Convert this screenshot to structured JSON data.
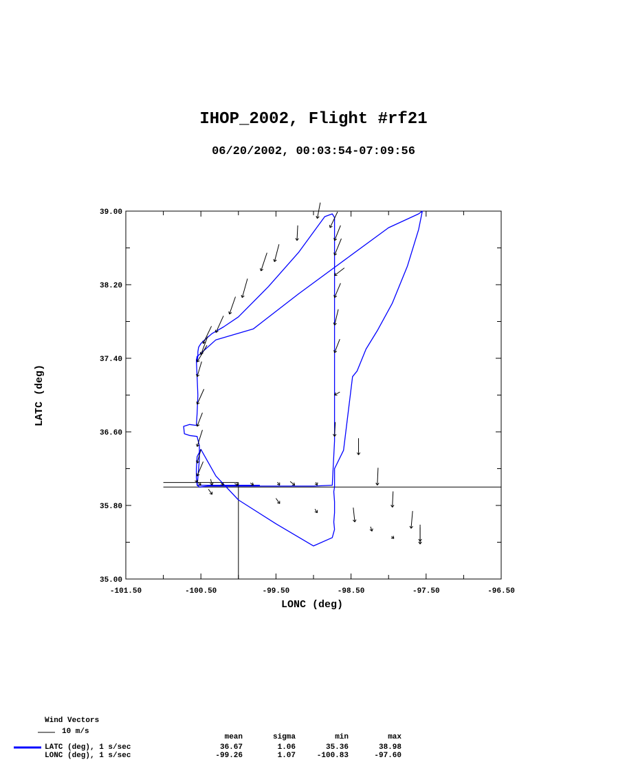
{
  "page": {
    "title": "IHOP_2002, Flight #rf21",
    "subtitle": "06/20/2002, 00:03:54-07:09:56"
  },
  "chart_data": {
    "type": "line",
    "xlabel": "LONC (deg)",
    "ylabel": "LATC (deg)",
    "xlim": [
      -101.5,
      -96.5
    ],
    "ylim": [
      35.0,
      39.0
    ],
    "x_ticks": [
      "-101.50",
      "-100.50",
      "-99.50",
      "-98.50",
      "-97.50",
      "-96.50"
    ],
    "y_ticks": [
      "35.00",
      "35.80",
      "36.60",
      "37.40",
      "38.20",
      "39.00"
    ],
    "grid": false,
    "track_color": "#0000ff",
    "vector_color": "#000000",
    "reference_lines": [
      {
        "x": [
          -101.0,
          -96.5
        ],
        "y": [
          36.0,
          36.0
        ]
      },
      {
        "x": [
          -101.0,
          -100.0
        ],
        "y": [
          36.05,
          36.05
        ]
      },
      {
        "x": [
          -100.0,
          -100.0
        ],
        "y": [
          36.05,
          35.0
        ]
      }
    ],
    "series": [
      {
        "x": [
          -100.55,
          -100.54,
          -100.54,
          -100.53,
          -100.5,
          -100.45,
          -100.35,
          -100.2,
          -100.0,
          -99.6,
          -99.2,
          -98.85,
          -98.75,
          -98.72,
          -98.72,
          -98.72,
          -98.72,
          -98.72,
          -98.72,
          -98.72,
          -98.75,
          -99.0,
          -99.5,
          -100.0,
          -100.4,
          -100.52,
          -100.55,
          -100.54,
          -100.53,
          -100.52,
          -100.52,
          -100.55,
          -100.65,
          -100.72,
          -100.73,
          -100.65,
          -100.56,
          -100.55,
          -100.54,
          -100.55,
          -100.56,
          -100.55,
          -100.52,
          -100.3,
          -99.8,
          -99.2,
          -98.6,
          -98.0,
          -97.6,
          -97.55,
          -97.6,
          -97.75,
          -97.95,
          -98.15,
          -98.3,
          -98.38,
          -98.42,
          -98.48,
          -98.6,
          -98.72,
          -98.72,
          -98.73,
          -98.72,
          -98.72,
          -98.73,
          -98.72,
          -98.75,
          -99.0,
          -99.5,
          -100.0,
          -100.3,
          -100.5,
          -100.55,
          -100.56,
          -100.56,
          -100.55,
          -100.54,
          -100.55,
          -100.55,
          -100.2,
          -100.0,
          -99.75,
          -99.72,
          -99.75,
          -100.0,
          -100.3,
          -100.55
        ],
        "y": [
          37.36,
          37.42,
          37.47,
          37.52,
          37.56,
          37.6,
          37.67,
          37.74,
          37.85,
          38.18,
          38.55,
          38.94,
          38.97,
          38.93,
          38.6,
          38.2,
          37.8,
          37.4,
          37.0,
          36.5,
          36.02,
          36.01,
          36.01,
          36.01,
          36.01,
          36.0,
          36.02,
          36.1,
          36.2,
          36.3,
          36.45,
          36.55,
          36.56,
          36.58,
          36.66,
          36.68,
          36.67,
          36.8,
          37.0,
          37.2,
          37.38,
          37.42,
          37.44,
          37.6,
          37.72,
          38.1,
          38.46,
          38.82,
          38.97,
          39.0,
          38.8,
          38.4,
          38.0,
          37.7,
          37.5,
          37.34,
          37.26,
          37.2,
          36.4,
          36.2,
          36.0,
          35.95,
          35.84,
          35.72,
          35.62,
          35.54,
          35.45,
          35.36,
          35.6,
          35.86,
          36.12,
          36.41,
          36.33,
          36.2,
          36.1,
          36.02,
          36.02,
          36.02,
          36.02,
          36.02,
          36.02,
          36.02,
          36.02,
          36.02,
          36.02,
          36.02,
          36.02
        ]
      }
    ],
    "wind_vectors": {
      "lon": [
        -100.55,
        -100.5,
        -100.47,
        -100.3,
        -100.12,
        -99.95,
        -99.7,
        -99.52,
        -99.22,
        -98.95,
        -98.78,
        -98.72,
        -98.72,
        -98.72,
        -98.72,
        -98.72,
        -98.72,
        -98.72,
        -98.72,
        -98.95,
        -99.25,
        -99.45,
        -99.8,
        -100.0,
        -100.2,
        -100.35,
        -100.5,
        -100.55,
        -100.55,
        -100.55,
        -100.55,
        -100.55,
        -100.55,
        -98.4,
        -98.15,
        -97.95,
        -97.7,
        -97.58,
        -97.58,
        -97.93,
        -98.22,
        -98.45,
        -98.95,
        -99.45,
        -100.35,
        -100.55
      ],
      "lat": [
        37.36,
        37.44,
        37.56,
        37.68,
        37.88,
        38.06,
        38.35,
        38.45,
        38.68,
        38.92,
        38.82,
        38.68,
        38.52,
        38.3,
        38.06,
        37.76,
        37.46,
        37.0,
        36.55,
        36.02,
        36.02,
        36.02,
        36.02,
        36.02,
        36.02,
        36.02,
        36.02,
        36.12,
        36.26,
        36.44,
        36.66,
        36.9,
        37.2,
        36.35,
        36.02,
        35.78,
        35.55,
        35.41,
        35.38,
        35.44,
        35.52,
        35.62,
        35.72,
        35.82,
        35.92,
        36.05
      ],
      "u": [
        2.6,
        1.8,
        2.2,
        2.0,
        1.6,
        1.4,
        1.6,
        1.2,
        0.2,
        0.8,
        2.0,
        1.6,
        1.8,
        2.6,
        1.6,
        1.0,
        1.4,
        1.4,
        0.2,
        -0.4,
        -1.2,
        -0.6,
        -0.8,
        -1.0,
        -0.6,
        -0.4,
        -0.8,
        1.6,
        1.0,
        1.4,
        1.4,
        1.8,
        1.2,
        0.0,
        0.2,
        0.2,
        0.4,
        0.0,
        0.0,
        -0.6,
        -0.4,
        -0.4,
        -0.6,
        -1.0,
        -1.0,
        -0.2
      ],
      "v": [
        4.4,
        4.8,
        4.6,
        4.4,
        4.6,
        5.0,
        4.8,
        4.6,
        4.0,
        4.2,
        4.2,
        4.0,
        4.4,
        2.0,
        3.8,
        4.2,
        3.6,
        0.8,
        3.8,
        0.8,
        1.0,
        0.8,
        0.6,
        0.4,
        0.6,
        1.6,
        0.8,
        3.8,
        3.6,
        4.4,
        3.6,
        4.0,
        4.0,
        4.4,
        4.6,
        4.2,
        4.6,
        4.4,
        4.4,
        0.6,
        1.2,
        3.8,
        1.0,
        1.4,
        1.4,
        0.6
      ]
    },
    "legend": {
      "vectors_title": "Wind Vectors",
      "vectors_ref": "10 m/s",
      "headers": [
        "mean",
        "sigma",
        "min",
        "max"
      ],
      "rows": [
        {
          "label": "LATC (deg), 1 s/sec",
          "mean": "36.67",
          "sigma": "1.06",
          "min": "35.36",
          "max": "38.98",
          "color": "#0000ff"
        },
        {
          "label": "LONC (deg), 1 s/sec",
          "mean": "-99.26",
          "sigma": "1.07",
          "min": "-100.83",
          "max": "-97.60"
        }
      ]
    }
  }
}
